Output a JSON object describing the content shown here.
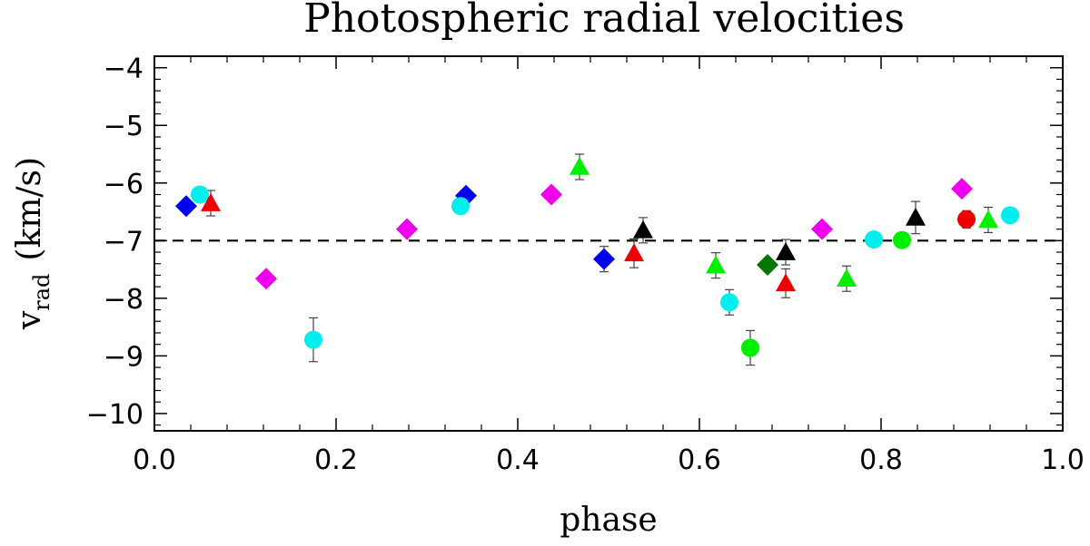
{
  "chart_data": {
    "type": "scatter",
    "title": "Photospheric radial velocities",
    "xlabel": "phase",
    "ylabel_main": "v",
    "ylabel_sub": "rad",
    "ylabel_unit": "(km/s)",
    "xlim": [
      0.0,
      1.0
    ],
    "ylim": [
      -10.3,
      -3.8
    ],
    "x_ticks": [
      0.0,
      0.2,
      0.4,
      0.6,
      0.8,
      1.0
    ],
    "x_tick_labels": [
      "0.0",
      "0.2",
      "0.4",
      "0.6",
      "0.8",
      "1.0"
    ],
    "y_ticks": [
      -10,
      -9,
      -8,
      -7,
      -6,
      -5,
      -4
    ],
    "y_tick_labels": [
      "−10",
      "−9",
      "−8",
      "−7",
      "−6",
      "−5",
      "−4"
    ],
    "reference_line": {
      "y": -7.0,
      "style": "dashed"
    },
    "colors": {
      "blue": "#0000ee",
      "cyan": "#00eeee",
      "red": "#ee0000",
      "magenta": "#ee00ee",
      "green": "#00ee00",
      "darkgreen": "#007700",
      "black": "#000000"
    },
    "series": [
      {
        "name": "blue-diamond",
        "marker": "diamond",
        "color": "blue",
        "points": [
          {
            "x": 0.035,
            "y": -6.4
          },
          {
            "x": 0.343,
            "y": -6.22
          },
          {
            "x": 0.495,
            "y": -7.32,
            "err": 0.22
          }
        ]
      },
      {
        "name": "cyan-circle",
        "marker": "circle",
        "color": "cyan",
        "points": [
          {
            "x": 0.05,
            "y": -6.2
          },
          {
            "x": 0.175,
            "y": -8.72,
            "err": 0.38
          },
          {
            "x": 0.337,
            "y": -6.4
          },
          {
            "x": 0.633,
            "y": -8.07,
            "err": 0.22
          },
          {
            "x": 0.792,
            "y": -6.98,
            "err": 0.12
          },
          {
            "x": 0.942,
            "y": -6.56,
            "err": 0.1
          }
        ]
      },
      {
        "name": "red-triangle",
        "marker": "triangle",
        "color": "red",
        "points": [
          {
            "x": 0.062,
            "y": -6.35,
            "err": 0.22
          },
          {
            "x": 0.528,
            "y": -7.22,
            "err": 0.25
          },
          {
            "x": 0.695,
            "y": -7.74,
            "err": 0.25
          }
        ]
      },
      {
        "name": "red-circle",
        "marker": "circle",
        "color": "red",
        "points": [
          {
            "x": 0.894,
            "y": -6.63,
            "err": 0.15
          }
        ]
      },
      {
        "name": "magenta-diamond",
        "marker": "diamond",
        "color": "magenta",
        "points": [
          {
            "x": 0.123,
            "y": -7.66
          },
          {
            "x": 0.278,
            "y": -6.8
          },
          {
            "x": 0.437,
            "y": -6.2
          },
          {
            "x": 0.735,
            "y": -6.8
          },
          {
            "x": 0.889,
            "y": -6.1
          }
        ]
      },
      {
        "name": "green-triangle",
        "marker": "triangle",
        "color": "green",
        "points": [
          {
            "x": 0.468,
            "y": -5.72,
            "err": 0.22
          },
          {
            "x": 0.618,
            "y": -7.43,
            "err": 0.22
          },
          {
            "x": 0.762,
            "y": -7.66,
            "err": 0.22
          },
          {
            "x": 0.918,
            "y": -6.64,
            "err": 0.22
          }
        ]
      },
      {
        "name": "green-circle",
        "marker": "circle",
        "color": "green",
        "points": [
          {
            "x": 0.656,
            "y": -8.86,
            "err": 0.3
          },
          {
            "x": 0.823,
            "y": -6.99,
            "err": 0.1
          }
        ]
      },
      {
        "name": "darkgreen-diamond",
        "marker": "diamond",
        "color": "darkgreen",
        "points": [
          {
            "x": 0.675,
            "y": -7.42,
            "err": 0.1
          }
        ]
      },
      {
        "name": "black-triangle",
        "marker": "triangle",
        "color": "black",
        "points": [
          {
            "x": 0.538,
            "y": -6.82,
            "err": 0.22
          },
          {
            "x": 0.695,
            "y": -7.2,
            "err": 0.22
          },
          {
            "x": 0.838,
            "y": -6.6,
            "err": 0.28
          }
        ]
      }
    ]
  }
}
